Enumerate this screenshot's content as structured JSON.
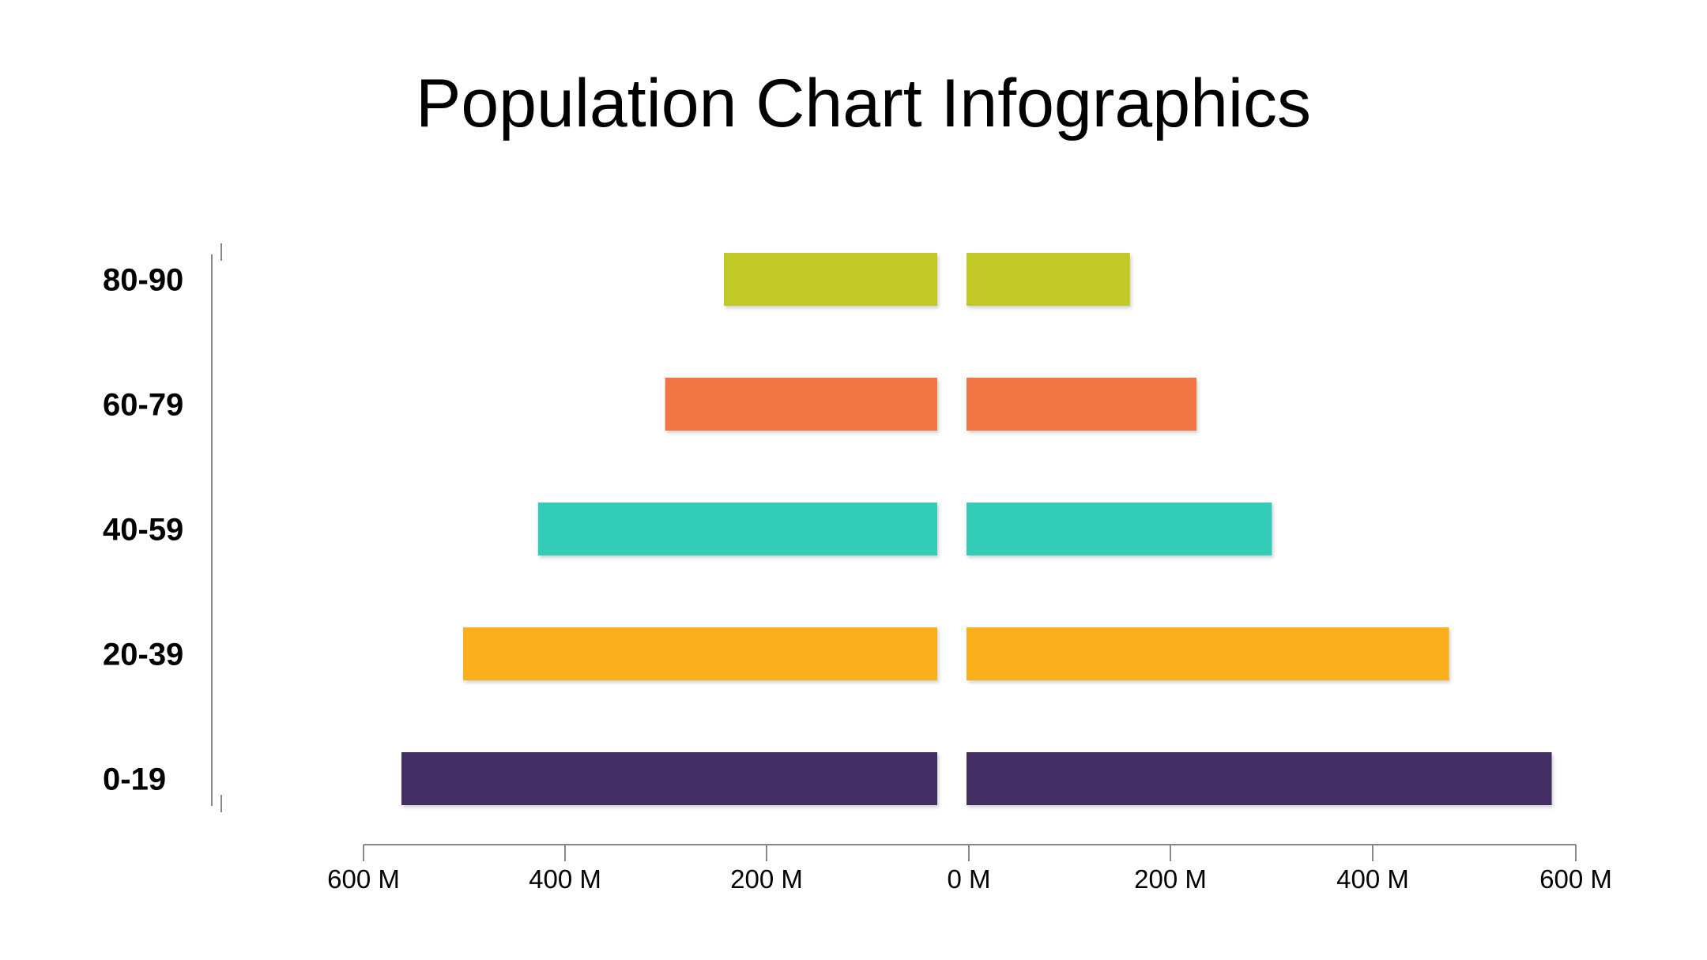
{
  "chart_data": {
    "type": "bar",
    "orientation": "horizontal",
    "layout": "population-pyramid",
    "title": "Population Chart Infographics",
    "categories": [
      "80-90",
      "60-79",
      "40-59",
      "20-39",
      "0-19"
    ],
    "unit": "M",
    "left_values": [
      225,
      287,
      421,
      500,
      565
    ],
    "right_values": [
      167,
      235,
      312,
      493,
      598
    ],
    "colors": [
      "#C0C928",
      "#F27445",
      "#33CCB8",
      "#F9B01C",
      "#422F62"
    ],
    "x_ticks": [
      "600 M",
      "400 M",
      "200 M",
      "0 M",
      "200 M",
      "400 M",
      "600 M"
    ],
    "xlim": [
      0,
      600
    ],
    "xlabel": "",
    "ylabel": "",
    "grid": false,
    "legend": "none"
  }
}
